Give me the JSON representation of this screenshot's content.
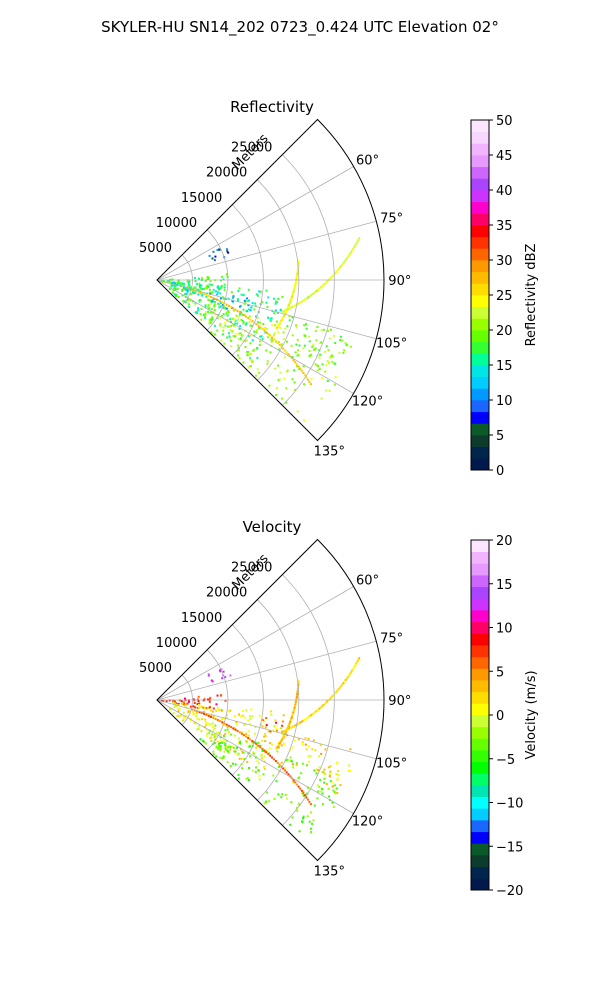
{
  "figure": {
    "suptitle": "SKYLER-HU  SN14_202  0723_0.424 UTC Elevation 02°"
  },
  "colors": {
    "grid": "#b0b0b0",
    "axis": "#000000",
    "reflectivity_cmap": [
      "#001a4d",
      "#00264d",
      "#0d3b2e",
      "#0a5a2a",
      "#0000ff",
      "#1a66ff",
      "#0099ff",
      "#00ccff",
      "#00e6e6",
      "#00ff99",
      "#33ff33",
      "#66ff00",
      "#99ff00",
      "#ccff33",
      "#ffff00",
      "#ffdd00",
      "#ffbb00",
      "#ff9900",
      "#ff6600",
      "#ff3300",
      "#ff0000",
      "#ff0066",
      "#ff00cc",
      "#cc33ff",
      "#aa44ff",
      "#cc66ff",
      "#e699ff",
      "#f2b3ff",
      "#f7d6ff",
      "#fce6ff"
    ],
    "velocity_cmap": [
      "#001a4d",
      "#00264d",
      "#0d3b2e",
      "#0a5a2a",
      "#0000ff",
      "#1a66ff",
      "#00ccff",
      "#00ffff",
      "#00e6b3",
      "#00ff66",
      "#00ff00",
      "#33ff00",
      "#66ff00",
      "#99ff00",
      "#ccff33",
      "#ffff00",
      "#ffdd00",
      "#ffbb00",
      "#ff9900",
      "#ff6600",
      "#ff3300",
      "#ff0000",
      "#ff0066",
      "#ff00cc",
      "#cc33ff",
      "#aa44ff",
      "#cc66ff",
      "#e699ff",
      "#f2b3ff",
      "#fce6ff"
    ]
  },
  "chart_data": [
    {
      "type": "heatmap",
      "title": "Reflectivity",
      "projection": "polar-sector",
      "theta_range_deg": [
        45,
        135
      ],
      "theta_ticks_deg": [
        60,
        75,
        90,
        105,
        120,
        135
      ],
      "theta_tick_labels": [
        "60°",
        "75°",
        "90°",
        "105°",
        "120°",
        "135°"
      ],
      "r_label": "Meters",
      "r_range": [
        0,
        32000
      ],
      "r_ticks": [
        5000,
        10000,
        15000,
        20000,
        25000
      ],
      "r_tick_labels": [
        "5000",
        "10000",
        "15000",
        "20000",
        "25000"
      ],
      "grid": true,
      "colorbar": {
        "label": "Reflectivity dBZ",
        "range": [
          0,
          50
        ],
        "ticks": [
          0,
          5,
          10,
          15,
          20,
          25,
          30,
          35,
          40,
          45,
          50
        ],
        "tick_labels": [
          "0",
          "5",
          "10",
          "15",
          "20",
          "25",
          "30",
          "35",
          "40",
          "45",
          "50"
        ]
      },
      "echo_regions": [
        {
          "theta": [
            95,
            130
          ],
          "r": [
            2000,
            18000
          ],
          "value": 17
        },
        {
          "theta": [
            110,
            134
          ],
          "r": [
            8000,
            29000
          ],
          "value": 21
        },
        {
          "theta": [
            95,
            110
          ],
          "r": [
            2000,
            9000
          ],
          "value": 14
        },
        {
          "theta": [
            84,
            100
          ],
          "r": [
            500,
            10000
          ],
          "value": 18
        },
        {
          "theta": [
            62,
            72
          ],
          "r": [
            8000,
            11000
          ],
          "value": 8
        },
        {
          "theta": [
            104,
            118
          ],
          "r": [
            18000,
            29000
          ],
          "value": 20
        },
        {
          "theta": [
            100,
            112
          ],
          "r": [
            8000,
            14000
          ],
          "value": 13
        }
      ],
      "echo_lines": [
        {
          "theta": [
            78,
            104
          ],
          "r": [
            29000,
            18000
          ],
          "value": 23
        },
        {
          "theta": [
            82,
            112
          ],
          "r": [
            20000,
            18000
          ],
          "value": 24
        },
        {
          "theta": [
            104,
            124
          ],
          "r": [
            5000,
            26000
          ],
          "value": 27
        }
      ]
    },
    {
      "type": "heatmap",
      "title": "Velocity",
      "projection": "polar-sector",
      "theta_range_deg": [
        45,
        135
      ],
      "theta_ticks_deg": [
        60,
        75,
        90,
        105,
        120,
        135
      ],
      "theta_tick_labels": [
        "60°",
        "75°",
        "90°",
        "105°",
        "120°",
        "135°"
      ],
      "r_label": "Meters",
      "r_range": [
        0,
        32000
      ],
      "r_ticks": [
        5000,
        10000,
        15000,
        20000,
        25000
      ],
      "r_tick_labels": [
        "5000",
        "10000",
        "15000",
        "20000",
        "25000"
      ],
      "grid": true,
      "colorbar": {
        "label": "Velocity (m/s)",
        "range": [
          -20,
          20
        ],
        "ticks": [
          -20,
          -15,
          -10,
          -5,
          0,
          5,
          10,
          15,
          20
        ],
        "tick_labels": [
          "−20",
          "−15",
          "−10",
          "−5",
          "0",
          "5",
          "10",
          "15",
          "20"
        ]
      },
      "echo_regions": [
        {
          "theta": [
            84,
            100
          ],
          "r": [
            500,
            10000
          ],
          "value": 8
        },
        {
          "theta": [
            95,
            128
          ],
          "r": [
            2000,
            18000
          ],
          "value": 1
        },
        {
          "theta": [
            112,
            134
          ],
          "r": [
            8000,
            29000
          ],
          "value": -3
        },
        {
          "theta": [
            62,
            72
          ],
          "r": [
            8000,
            11000
          ],
          "value": 14
        },
        {
          "theta": [
            98,
            106
          ],
          "r": [
            15000,
            19000
          ],
          "value": 7
        },
        {
          "theta": [
            104,
            118
          ],
          "r": [
            18000,
            29000
          ],
          "value": 2
        }
      ],
      "echo_lines": [
        {
          "theta": [
            78,
            104
          ],
          "r": [
            29000,
            18000
          ],
          "value": 2
        },
        {
          "theta": [
            82,
            112
          ],
          "r": [
            20000,
            18000
          ],
          "value": 3
        },
        {
          "theta": [
            104,
            124
          ],
          "r": [
            5000,
            26000
          ],
          "value": 6
        }
      ]
    }
  ]
}
